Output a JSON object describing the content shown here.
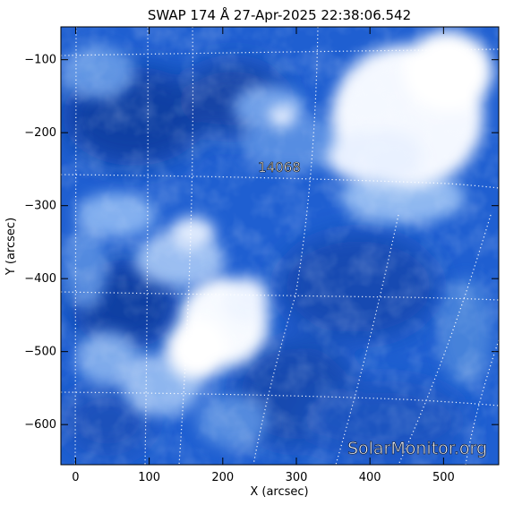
{
  "title": "SWAP 174 Å 27-Apr-2025 22:38:06.542",
  "x_axis": {
    "label": "X (arcsec)",
    "range": [
      -20,
      575
    ],
    "ticks": [
      0,
      100,
      200,
      300,
      400,
      500
    ]
  },
  "y_axis": {
    "label": "Y (arcsec)",
    "range": [
      -655,
      -55
    ],
    "ticks": [
      -100,
      -200,
      -300,
      -400,
      -500,
      -600
    ]
  },
  "region_label": "14068",
  "watermark": "SolarMonitor.org",
  "colors": {
    "background": "#ffffff",
    "image_base": "#1f5fd1",
    "image_dark": "#0f3a9c",
    "image_bright": "#ffffff",
    "grid": "#ffffff"
  }
}
